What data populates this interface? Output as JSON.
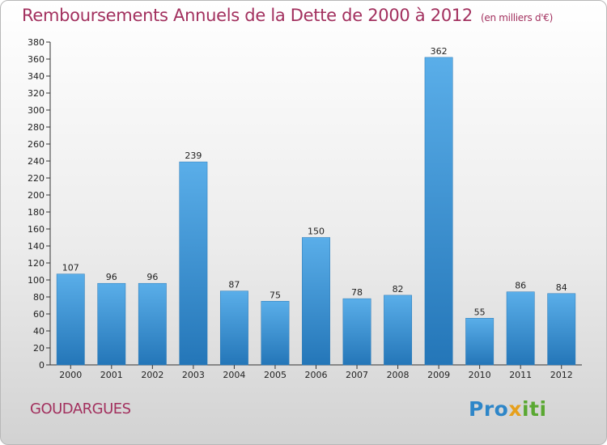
{
  "chart_data": {
    "type": "bar",
    "title": "Remboursements Annuels de la Dette de 2000 à 2012",
    "unit": "(en milliers d'€)",
    "categories": [
      "2000",
      "2001",
      "2002",
      "2003",
      "2004",
      "2005",
      "2006",
      "2007",
      "2008",
      "2009",
      "2010",
      "2011",
      "2012"
    ],
    "values": [
      107,
      96,
      96,
      239,
      87,
      75,
      150,
      78,
      82,
      362,
      55,
      86,
      84
    ],
    "ylim": [
      0,
      380
    ],
    "ytick_step": 20,
    "grid": false,
    "bar_color": "#3d97d9"
  },
  "footer": {
    "town": "GOUDARGUES",
    "logo": [
      "Pro",
      "x",
      "iti"
    ]
  },
  "colors": {
    "title": "#a2305e",
    "logo_blue": "#2e86c8",
    "logo_orange": "#e6a01c",
    "logo_green": "#5aa832"
  }
}
